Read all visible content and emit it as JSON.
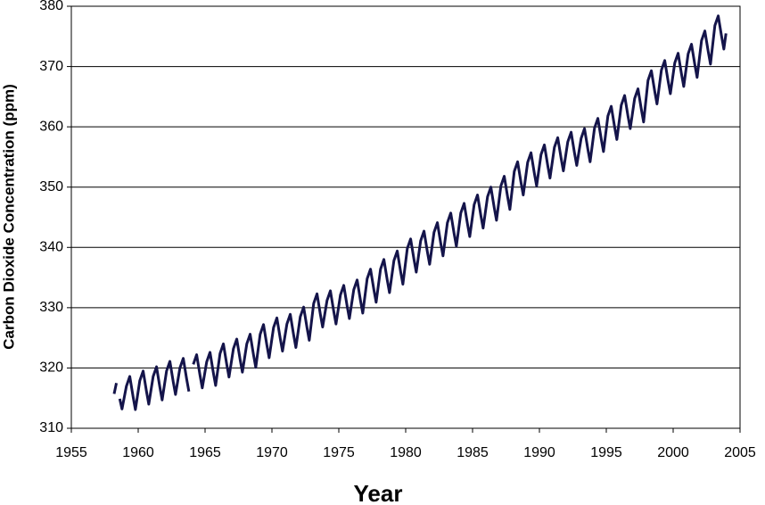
{
  "chart_data": {
    "type": "line",
    "xlabel": "Year",
    "ylabel": "Carbon Dioxide Concentration (ppm)",
    "xlim": [
      1955,
      2005
    ],
    "xticks": [
      1955,
      1960,
      1965,
      1970,
      1975,
      1980,
      1985,
      1990,
      1995,
      2000,
      2005
    ],
    "ylim": [
      310,
      380
    ],
    "yticks": [
      310,
      320,
      330,
      340,
      350,
      360,
      370,
      380
    ],
    "grid": true,
    "x": [
      1958.2,
      1958.37,
      1958.5,
      1958.62,
      1958.79,
      1959.12,
      1959.37,
      1959.62,
      1959.79,
      1960.12,
      1960.37,
      1960.62,
      1960.79,
      1961.12,
      1961.37,
      1961.62,
      1961.79,
      1962.12,
      1962.37,
      1962.62,
      1962.79,
      1963.12,
      1963.37,
      1963.62,
      1963.79,
      1964.0,
      1964.12,
      1964.37,
      1964.62,
      1964.79,
      1965.12,
      1965.37,
      1965.62,
      1965.79,
      1966.12,
      1966.37,
      1966.62,
      1966.79,
      1967.12,
      1967.37,
      1967.62,
      1967.79,
      1968.12,
      1968.37,
      1968.62,
      1968.79,
      1969.12,
      1969.37,
      1969.62,
      1969.79,
      1970.12,
      1970.37,
      1970.62,
      1970.79,
      1971.12,
      1971.37,
      1971.62,
      1971.79,
      1972.12,
      1972.37,
      1972.62,
      1972.79,
      1973.12,
      1973.37,
      1973.62,
      1973.79,
      1974.12,
      1974.37,
      1974.62,
      1974.79,
      1975.12,
      1975.37,
      1975.62,
      1975.79,
      1976.12,
      1976.37,
      1976.62,
      1976.79,
      1977.12,
      1977.37,
      1977.62,
      1977.79,
      1978.12,
      1978.37,
      1978.62,
      1978.79,
      1979.12,
      1979.37,
      1979.62,
      1979.79,
      1980.12,
      1980.37,
      1980.62,
      1980.79,
      1981.12,
      1981.37,
      1981.62,
      1981.79,
      1982.12,
      1982.37,
      1982.62,
      1982.79,
      1983.12,
      1983.37,
      1983.62,
      1983.79,
      1984.12,
      1984.37,
      1984.62,
      1984.79,
      1985.12,
      1985.37,
      1985.62,
      1985.79,
      1986.12,
      1986.37,
      1986.62,
      1986.79,
      1987.12,
      1987.37,
      1987.62,
      1987.79,
      1988.12,
      1988.37,
      1988.62,
      1988.79,
      1989.12,
      1989.37,
      1989.62,
      1989.79,
      1990.12,
      1990.37,
      1990.62,
      1990.79,
      1991.12,
      1991.37,
      1991.62,
      1991.79,
      1992.12,
      1992.37,
      1992.62,
      1992.79,
      1993.12,
      1993.37,
      1993.62,
      1993.79,
      1994.12,
      1994.37,
      1994.62,
      1994.79,
      1995.12,
      1995.37,
      1995.62,
      1995.79,
      1996.12,
      1996.37,
      1996.62,
      1996.79,
      1997.12,
      1997.37,
      1997.62,
      1997.79,
      1998.12,
      1998.37,
      1998.62,
      1998.79,
      1999.12,
      1999.37,
      1999.62,
      1999.79,
      2000.12,
      2000.37,
      2000.62,
      2000.79,
      2001.12,
      2001.37,
      2001.62,
      2001.79,
      2002.12,
      2002.37,
      2002.62,
      2002.79,
      2003.12,
      2003.37,
      2003.62,
      2003.79,
      2003.95
    ],
    "series": [
      {
        "color": "#14144a",
        "values": [
          315.7,
          317.5,
          null,
          314.9,
          313.2,
          317.0,
          318.6,
          315.2,
          313.1,
          317.9,
          319.5,
          316.1,
          314.0,
          318.6,
          320.2,
          316.8,
          314.7,
          319.5,
          321.1,
          317.7,
          315.6,
          320.0,
          321.6,
          318.2,
          316.1,
          null,
          320.6,
          322.2,
          318.8,
          316.7,
          321.0,
          322.6,
          319.2,
          317.1,
          322.4,
          324.0,
          320.6,
          318.5,
          323.2,
          324.8,
          321.4,
          319.3,
          324.0,
          325.6,
          322.2,
          320.1,
          325.6,
          327.2,
          323.8,
          321.7,
          326.7,
          328.3,
          324.9,
          322.8,
          327.3,
          328.9,
          325.5,
          323.4,
          328.5,
          330.1,
          326.7,
          324.6,
          330.7,
          332.3,
          328.9,
          326.8,
          331.2,
          332.8,
          329.4,
          327.3,
          332.1,
          333.7,
          330.3,
          328.2,
          333.0,
          334.6,
          331.2,
          329.1,
          334.8,
          336.4,
          333.0,
          330.9,
          336.4,
          338.0,
          334.6,
          332.5,
          337.8,
          339.4,
          336.0,
          333.9,
          339.8,
          341.4,
          338.0,
          335.9,
          341.1,
          342.7,
          339.3,
          337.2,
          342.5,
          344.1,
          340.7,
          338.6,
          344.1,
          345.7,
          342.3,
          340.2,
          345.7,
          347.3,
          343.9,
          341.8,
          347.1,
          348.7,
          345.3,
          343.2,
          348.4,
          350.0,
          346.6,
          344.5,
          350.2,
          351.8,
          348.4,
          346.3,
          352.6,
          354.2,
          350.8,
          348.7,
          354.1,
          355.7,
          352.3,
          350.2,
          355.4,
          357.0,
          353.6,
          351.5,
          356.6,
          358.2,
          354.8,
          352.7,
          357.5,
          359.1,
          355.7,
          353.6,
          358.1,
          359.7,
          356.3,
          354.2,
          359.8,
          361.4,
          358.0,
          355.9,
          361.8,
          363.4,
          360.0,
          357.9,
          363.6,
          365.2,
          361.8,
          359.7,
          364.7,
          366.3,
          362.9,
          360.8,
          367.7,
          369.3,
          365.9,
          363.8,
          369.4,
          371.0,
          367.6,
          365.5,
          370.6,
          372.2,
          368.8,
          366.7,
          372.1,
          373.7,
          370.3,
          368.2,
          374.3,
          375.9,
          372.5,
          370.4,
          376.8,
          378.4,
          375.0,
          372.9,
          375.5
        ]
      }
    ]
  }
}
